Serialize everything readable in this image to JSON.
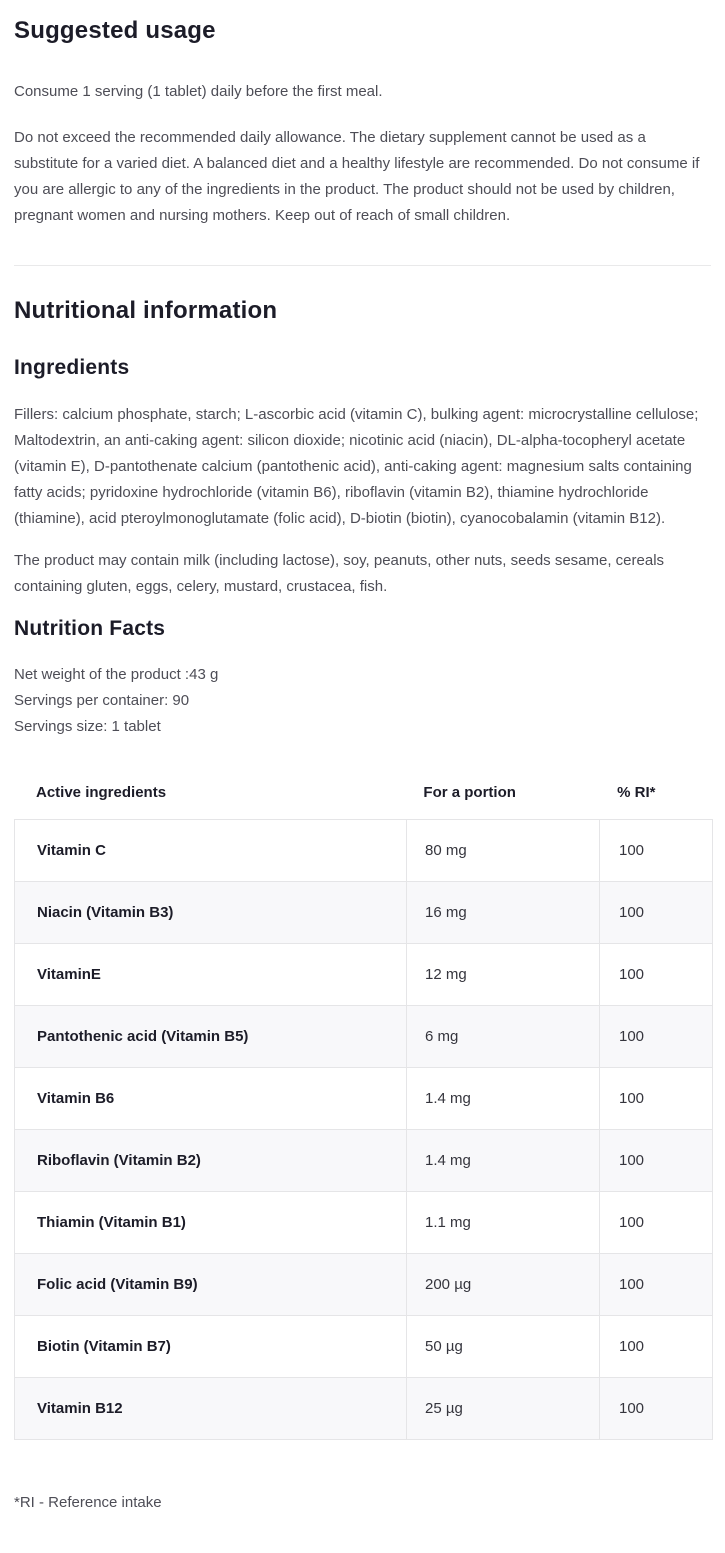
{
  "suggested_usage": {
    "title": "Suggested usage",
    "paragraphs": [
      "Consume 1 serving (1 tablet) daily before the first meal.",
      "Do not exceed the recommended daily allowance. The dietary supplement cannot be used as a substitute for a varied diet. A balanced diet and a healthy lifestyle are recommended. Do not consume if you are allergic to any of the ingredients in the product. The product should not be used by children, pregnant women and nursing mothers. Keep out of reach of small children."
    ]
  },
  "nutritional_information": {
    "title": "Nutritional information",
    "ingredients": {
      "title": "Ingredients",
      "paragraphs": [
        "Fillers: calcium phosphate, starch; L-ascorbic acid (vitamin C), bulking agent: microcrystalline cellulose; Maltodextrin, an anti-caking agent: silicon dioxide; nicotinic acid (niacin), DL-alpha-tocopheryl acetate (vitamin E), D-pantothenate calcium (pantothenic acid), anti-caking agent: magnesium salts containing fatty acids; pyridoxine hydrochloride (vitamin B6), riboflavin (vitamin B2), thiamine hydrochloride (thiamine), acid pteroylmonoglutamate (folic acid), D-biotin (biotin), cyanocobalamin (vitamin B12).",
        "The product may contain milk (including lactose), soy, peanuts, other nuts, seeds sesame, cereals containing gluten, eggs, celery, mustard, crustacea, fish."
      ]
    },
    "nutrition_facts": {
      "title": "Nutrition Facts",
      "meta": [
        "Net weight of the product :43 g",
        "Servings per container: 90",
        "Servings size: 1 tablet"
      ],
      "table": {
        "headers": [
          "Active ingredients",
          "For a portion",
          "% RI*"
        ],
        "rows": [
          {
            "name": "Vitamin C",
            "portion": "80 mg",
            "ri": "100"
          },
          {
            "name": "Niacin (Vitamin B3)",
            "portion": "16 mg",
            "ri": "100"
          },
          {
            "name": "VitaminE",
            "portion": "12 mg",
            "ri": "100"
          },
          {
            "name": "Pantothenic acid (Vitamin B5)",
            "portion": "6 mg",
            "ri": "100"
          },
          {
            "name": "Vitamin B6",
            "portion": "1.4 mg",
            "ri": "100"
          },
          {
            "name": "Riboflavin (Vitamin B2)",
            "portion": "1.4 mg",
            "ri": "100"
          },
          {
            "name": "Thiamin (Vitamin B1)",
            "portion": "1.1 mg",
            "ri": "100"
          },
          {
            "name": "Folic acid (Vitamin B9)",
            "portion": "200 µg",
            "ri": "100"
          },
          {
            "name": "Biotin (Vitamin B7)",
            "portion": "50 µg",
            "ri": "100"
          },
          {
            "name": "Vitamin B12",
            "portion": "25 µg",
            "ri": "100"
          }
        ]
      },
      "footnote": "*RI - Reference intake"
    }
  }
}
